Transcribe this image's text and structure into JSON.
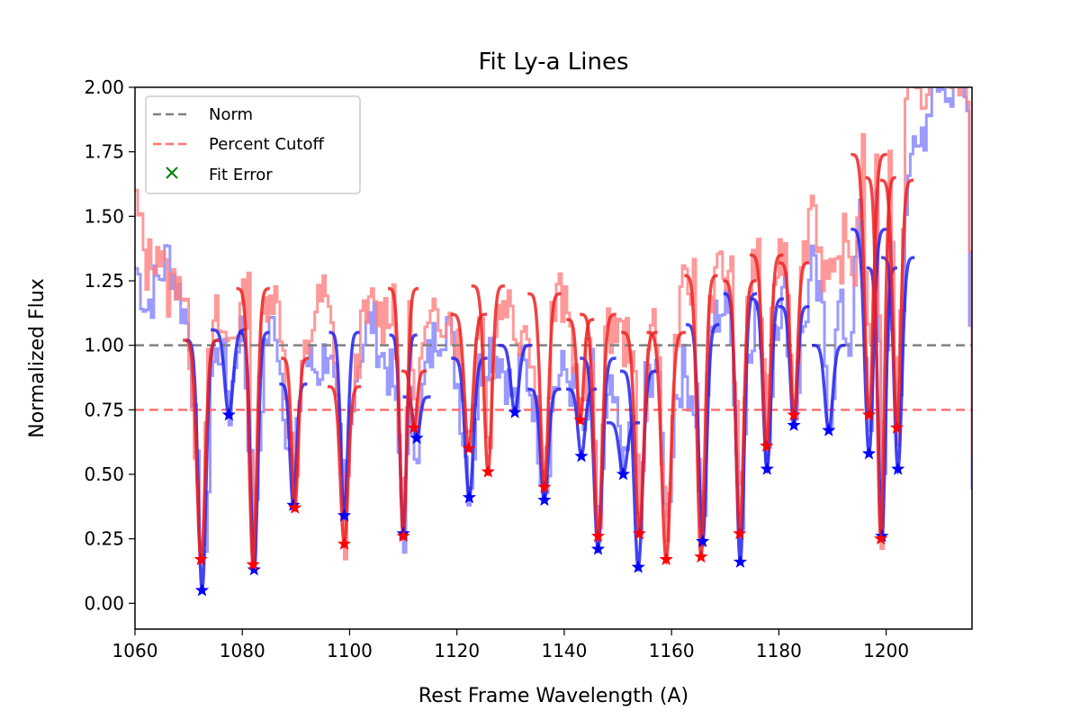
{
  "chart_data": {
    "type": "line",
    "title": "Fit Ly-a Lines",
    "xlabel": "Rest Frame Wavelength (A)",
    "ylabel": "Normalized Flux",
    "xlim": [
      1060,
      1216
    ],
    "ylim": [
      -0.1,
      2.0
    ],
    "x_ticks": [
      1060,
      1080,
      1100,
      1120,
      1140,
      1160,
      1180,
      1200
    ],
    "x_tick_labels": [
      "1060",
      "1080",
      "1100",
      "1120",
      "1140",
      "1160",
      "1180",
      "1200"
    ],
    "y_ticks": [
      0.0,
      0.25,
      0.5,
      0.75,
      1.0,
      1.25,
      1.5,
      1.75,
      2.0
    ],
    "y_tick_labels": [
      "0.00",
      "0.25",
      "0.50",
      "0.75",
      "1.00",
      "1.25",
      "1.50",
      "1.75",
      "2.00"
    ],
    "grid": false,
    "legend_position": "top-left",
    "legend": [
      {
        "label": "Norm",
        "style": "dashed",
        "color": "#808080"
      },
      {
        "label": "Percent Cutoff",
        "style": "dashed",
        "color": "#ff7070"
      },
      {
        "label": "Fit Error",
        "style": "x-marker",
        "color": "#008000"
      }
    ],
    "reference_lines": [
      {
        "name": "Norm",
        "y": 1.0,
        "color": "#808080"
      },
      {
        "name": "Percent Cutoff",
        "y": 0.75,
        "color": "#ff7070"
      }
    ],
    "series_colors": {
      "blue_spectrum": "#8888ff",
      "red_spectrum": "#ff8080",
      "blue_fit": "#2222ee",
      "red_fit": "#ee2222",
      "overlap": "#aa4488"
    },
    "blue_fits": [
      {
        "center": 1072.5,
        "depth": 0.05,
        "width": 1.2,
        "base": 1.02
      },
      {
        "center": 1077.5,
        "depth": 0.73,
        "width": 1.3,
        "base": 1.06
      },
      {
        "center": 1082.2,
        "depth": 0.13,
        "width": 1.1,
        "base": 1.05
      },
      {
        "center": 1089.5,
        "depth": 0.38,
        "width": 1.0,
        "base": 0.85
      },
      {
        "center": 1099.0,
        "depth": 0.34,
        "width": 1.1,
        "base": 1.05
      },
      {
        "center": 1110.0,
        "depth": 0.27,
        "width": 1.0,
        "base": 1.04
      },
      {
        "center": 1112.5,
        "depth": 0.64,
        "width": 1.0,
        "base": 0.8
      },
      {
        "center": 1122.3,
        "depth": 0.41,
        "width": 1.3,
        "base": 0.95
      },
      {
        "center": 1130.8,
        "depth": 0.74,
        "width": 1.2,
        "base": 1.0
      },
      {
        "center": 1136.3,
        "depth": 0.4,
        "width": 1.2,
        "base": 0.83
      },
      {
        "center": 1143.2,
        "depth": 0.57,
        "width": 1.1,
        "base": 0.83
      },
      {
        "center": 1146.3,
        "depth": 0.21,
        "width": 1.3,
        "base": 0.95
      },
      {
        "center": 1151.0,
        "depth": 0.5,
        "width": 1.2,
        "base": 0.7
      },
      {
        "center": 1153.8,
        "depth": 0.14,
        "width": 1.3,
        "base": 0.9
      },
      {
        "center": 1165.8,
        "depth": 0.24,
        "width": 1.2,
        "base": 1.08
      },
      {
        "center": 1172.8,
        "depth": 0.16,
        "width": 1.2,
        "base": 1.2
      },
      {
        "center": 1177.8,
        "depth": 0.52,
        "width": 1.2,
        "base": 1.18
      },
      {
        "center": 1182.8,
        "depth": 0.69,
        "width": 1.1,
        "base": 1.15
      },
      {
        "center": 1189.3,
        "depth": 0.67,
        "width": 1.2,
        "base": 1.0
      },
      {
        "center": 1196.8,
        "depth": 0.58,
        "width": 1.3,
        "base": 1.45
      },
      {
        "center": 1199.2,
        "depth": 0.26,
        "width": 1.1,
        "base": 1.3
      },
      {
        "center": 1202.2,
        "depth": 0.52,
        "width": 1.2,
        "base": 1.34
      }
    ],
    "red_fits": [
      {
        "center": 1072.3,
        "depth": 0.17,
        "width": 1.3,
        "base": 1.02
      },
      {
        "center": 1082.0,
        "depth": 0.15,
        "width": 1.2,
        "base": 1.22
      },
      {
        "center": 1089.8,
        "depth": 0.37,
        "width": 1.0,
        "base": 0.95
      },
      {
        "center": 1099.0,
        "depth": 0.23,
        "width": 1.2,
        "base": 0.84
      },
      {
        "center": 1110.0,
        "depth": 0.26,
        "width": 1.1,
        "base": 1.22
      },
      {
        "center": 1112.0,
        "depth": 0.68,
        "width": 0.9,
        "base": 0.9
      },
      {
        "center": 1122.2,
        "depth": 0.6,
        "width": 1.3,
        "base": 1.12
      },
      {
        "center": 1125.8,
        "depth": 0.51,
        "width": 1.2,
        "base": 1.23
      },
      {
        "center": 1136.3,
        "depth": 0.45,
        "width": 1.2,
        "base": 1.2
      },
      {
        "center": 1143.0,
        "depth": 0.71,
        "width": 1.0,
        "base": 1.1
      },
      {
        "center": 1146.3,
        "depth": 0.26,
        "width": 1.3,
        "base": 1.12
      },
      {
        "center": 1154.0,
        "depth": 0.27,
        "width": 1.3,
        "base": 1.05
      },
      {
        "center": 1159.0,
        "depth": 0.17,
        "width": 1.4,
        "base": 1.05
      },
      {
        "center": 1165.5,
        "depth": 0.18,
        "width": 1.2,
        "base": 1.27
      },
      {
        "center": 1172.7,
        "depth": 0.27,
        "width": 1.2,
        "base": 1.25
      },
      {
        "center": 1177.7,
        "depth": 0.61,
        "width": 1.2,
        "base": 1.35
      },
      {
        "center": 1182.8,
        "depth": 0.73,
        "width": 1.1,
        "base": 1.32
      },
      {
        "center": 1196.8,
        "depth": 0.73,
        "width": 1.3,
        "base": 1.74
      },
      {
        "center": 1199.0,
        "depth": 0.25,
        "width": 1.1,
        "base": 1.65
      },
      {
        "center": 1202.0,
        "depth": 0.68,
        "width": 1.2,
        "base": 1.64
      }
    ],
    "blue_markers": [
      {
        "x": 1072.5,
        "y": 0.05
      },
      {
        "x": 1077.5,
        "y": 0.73
      },
      {
        "x": 1082.2,
        "y": 0.13
      },
      {
        "x": 1089.5,
        "y": 0.38
      },
      {
        "x": 1099.0,
        "y": 0.34
      },
      {
        "x": 1110.0,
        "y": 0.27
      },
      {
        "x": 1112.5,
        "y": 0.64
      },
      {
        "x": 1122.3,
        "y": 0.41
      },
      {
        "x": 1130.8,
        "y": 0.74
      },
      {
        "x": 1136.3,
        "y": 0.4
      },
      {
        "x": 1143.2,
        "y": 0.57
      },
      {
        "x": 1146.3,
        "y": 0.21
      },
      {
        "x": 1151.0,
        "y": 0.5
      },
      {
        "x": 1153.8,
        "y": 0.14
      },
      {
        "x": 1165.8,
        "y": 0.24
      },
      {
        "x": 1172.8,
        "y": 0.16
      },
      {
        "x": 1177.8,
        "y": 0.52
      },
      {
        "x": 1182.8,
        "y": 0.69
      },
      {
        "x": 1189.3,
        "y": 0.67
      },
      {
        "x": 1196.8,
        "y": 0.58
      },
      {
        "x": 1199.2,
        "y": 0.26
      },
      {
        "x": 1202.2,
        "y": 0.52
      }
    ],
    "red_markers": [
      {
        "x": 1072.3,
        "y": 0.17
      },
      {
        "x": 1082.0,
        "y": 0.15
      },
      {
        "x": 1089.8,
        "y": 0.37
      },
      {
        "x": 1099.0,
        "y": 0.23
      },
      {
        "x": 1110.0,
        "y": 0.26
      },
      {
        "x": 1112.0,
        "y": 0.68
      },
      {
        "x": 1122.2,
        "y": 0.6
      },
      {
        "x": 1125.8,
        "y": 0.51
      },
      {
        "x": 1136.3,
        "y": 0.45
      },
      {
        "x": 1143.0,
        "y": 0.71
      },
      {
        "x": 1146.3,
        "y": 0.26
      },
      {
        "x": 1154.0,
        "y": 0.27
      },
      {
        "x": 1159.0,
        "y": 0.17
      },
      {
        "x": 1165.5,
        "y": 0.18
      },
      {
        "x": 1172.7,
        "y": 0.27
      },
      {
        "x": 1177.7,
        "y": 0.61
      },
      {
        "x": 1182.8,
        "y": 0.73
      },
      {
        "x": 1196.8,
        "y": 0.73
      },
      {
        "x": 1199.0,
        "y": 0.25
      },
      {
        "x": 1202.0,
        "y": 0.68
      }
    ],
    "blue_spectrum_anchors": [
      [
        1060,
        1.3
      ],
      [
        1062,
        1.15
      ],
      [
        1064,
        1.25
      ],
      [
        1066,
        1.35
      ],
      [
        1068,
        1.2
      ],
      [
        1070,
        1.05
      ],
      [
        1072,
        0.3
      ],
      [
        1073,
        0.1
      ],
      [
        1074,
        0.9
      ],
      [
        1076,
        1.0
      ],
      [
        1077.5,
        0.75
      ],
      [
        1079,
        1.05
      ],
      [
        1080,
        1.05
      ],
      [
        1081.5,
        0.5
      ],
      [
        1082.2,
        0.15
      ],
      [
        1083,
        0.6
      ],
      [
        1084,
        1.0
      ],
      [
        1086,
        1.1
      ],
      [
        1088,
        0.7
      ],
      [
        1089.5,
        0.45
      ],
      [
        1091,
        0.95
      ],
      [
        1094,
        0.9
      ],
      [
        1096,
        1.0
      ],
      [
        1098,
        0.6
      ],
      [
        1099,
        0.35
      ],
      [
        1100.5,
        0.85
      ],
      [
        1102,
        1.0
      ],
      [
        1104,
        1.1
      ],
      [
        1106,
        0.95
      ],
      [
        1108,
        0.85
      ],
      [
        1110,
        0.28
      ],
      [
        1111,
        0.75
      ],
      [
        1112.5,
        0.62
      ],
      [
        1114,
        0.9
      ],
      [
        1116,
        1.05
      ],
      [
        1118,
        1.1
      ],
      [
        1120,
        0.85
      ],
      [
        1122.3,
        0.42
      ],
      [
        1124,
        0.9
      ],
      [
        1126,
        1.0
      ],
      [
        1128,
        0.95
      ],
      [
        1130.8,
        0.76
      ],
      [
        1132,
        0.95
      ],
      [
        1134,
        0.8
      ],
      [
        1136.3,
        0.42
      ],
      [
        1138,
        0.85
      ],
      [
        1140,
        0.9
      ],
      [
        1142,
        0.8
      ],
      [
        1143.2,
        0.58
      ],
      [
        1145,
        0.9
      ],
      [
        1146.3,
        0.22
      ],
      [
        1148,
        0.8
      ],
      [
        1150,
        0.7
      ],
      [
        1151,
        0.5
      ],
      [
        1152.5,
        0.75
      ],
      [
        1153.8,
        0.15
      ],
      [
        1155,
        0.85
      ],
      [
        1157,
        0.95
      ],
      [
        1159,
        0.3
      ],
      [
        1160.5,
        0.8
      ],
      [
        1162,
        0.9
      ],
      [
        1164,
        0.8
      ],
      [
        1165.8,
        0.25
      ],
      [
        1167,
        1.05
      ],
      [
        1169,
        1.15
      ],
      [
        1171,
        1.1
      ],
      [
        1172.8,
        0.17
      ],
      [
        1174,
        1.0
      ],
      [
        1176,
        1.15
      ],
      [
        1177.8,
        0.53
      ],
      [
        1179,
        1.1
      ],
      [
        1181,
        1.2
      ],
      [
        1182.8,
        0.7
      ],
      [
        1184,
        1.0
      ],
      [
        1186,
        1.3
      ],
      [
        1188,
        1.1
      ],
      [
        1189.3,
        0.68
      ],
      [
        1191,
        1.15
      ],
      [
        1193,
        1.0
      ],
      [
        1195,
        1.5
      ],
      [
        1196.8,
        0.6
      ],
      [
        1198,
        1.5
      ],
      [
        1199.2,
        0.28
      ],
      [
        1200.5,
        1.4
      ],
      [
        1202.2,
        0.53
      ],
      [
        1203.5,
        1.5
      ],
      [
        1205,
        1.9
      ],
      [
        1207,
        1.7
      ],
      [
        1209,
        2.1
      ],
      [
        1211,
        2.0
      ],
      [
        1213,
        2.05
      ],
      [
        1215,
        1.9
      ],
      [
        1216,
        0.45
      ]
    ],
    "red_spectrum_anchors": [
      [
        1060,
        1.55
      ],
      [
        1062,
        1.3
      ],
      [
        1064,
        1.4
      ],
      [
        1066,
        1.2
      ],
      [
        1068,
        1.3
      ],
      [
        1070,
        1.0
      ],
      [
        1072.3,
        0.2
      ],
      [
        1073.5,
        0.9
      ],
      [
        1075,
        1.1
      ],
      [
        1077,
        1.0
      ],
      [
        1079,
        1.1
      ],
      [
        1081,
        1.2
      ],
      [
        1082,
        0.17
      ],
      [
        1083.5,
        1.1
      ],
      [
        1085,
        1.25
      ],
      [
        1087,
        1.1
      ],
      [
        1089.8,
        0.4
      ],
      [
        1091,
        0.9
      ],
      [
        1093,
        1.1
      ],
      [
        1095,
        1.2
      ],
      [
        1097,
        1.0
      ],
      [
        1099,
        0.25
      ],
      [
        1100.5,
        0.85
      ],
      [
        1102,
        1.05
      ],
      [
        1104,
        1.15
      ],
      [
        1106,
        1.1
      ],
      [
        1108,
        1.2
      ],
      [
        1110,
        0.28
      ],
      [
        1111,
        1.2
      ],
      [
        1112,
        0.7
      ],
      [
        1113.5,
        1.0
      ],
      [
        1116,
        1.1
      ],
      [
        1118,
        1.15
      ],
      [
        1120,
        1.0
      ],
      [
        1122.2,
        0.62
      ],
      [
        1123.5,
        1.0
      ],
      [
        1124.5,
        1.2
      ],
      [
        1125.8,
        0.52
      ],
      [
        1127,
        1.1
      ],
      [
        1129,
        1.2
      ],
      [
        1131,
        1.05
      ],
      [
        1133,
        1.1
      ],
      [
        1136.3,
        0.47
      ],
      [
        1137.5,
        1.1
      ],
      [
        1139,
        1.2
      ],
      [
        1141,
        1.05
      ],
      [
        1143,
        0.72
      ],
      [
        1144.5,
        1.05
      ],
      [
        1146.3,
        0.27
      ],
      [
        1147.5,
        1.0
      ],
      [
        1149,
        1.1
      ],
      [
        1151,
        1.0
      ],
      [
        1152.5,
        1.05
      ],
      [
        1154,
        0.28
      ],
      [
        1155.5,
        1.05
      ],
      [
        1157,
        1.1
      ],
      [
        1159,
        0.18
      ],
      [
        1160.5,
        1.0
      ],
      [
        1162,
        1.2
      ],
      [
        1164,
        1.25
      ],
      [
        1165.5,
        0.2
      ],
      [
        1167,
        1.2
      ],
      [
        1169,
        1.3
      ],
      [
        1171,
        1.25
      ],
      [
        1172.7,
        0.28
      ],
      [
        1174,
        1.2
      ],
      [
        1176,
        1.35
      ],
      [
        1177.7,
        0.62
      ],
      [
        1179,
        1.3
      ],
      [
        1181,
        1.4
      ],
      [
        1182.8,
        0.74
      ],
      [
        1184,
        1.25
      ],
      [
        1186,
        1.6
      ],
      [
        1188,
        1.3
      ],
      [
        1190,
        1.2
      ],
      [
        1192,
        1.4
      ],
      [
        1194,
        1.3
      ],
      [
        1195.5,
        1.75
      ],
      [
        1196.8,
        0.75
      ],
      [
        1198,
        1.8
      ],
      [
        1199,
        0.27
      ],
      [
        1200.5,
        1.7
      ],
      [
        1202,
        0.7
      ],
      [
        1203.5,
        1.9
      ],
      [
        1205,
        2.1
      ],
      [
        1207,
        1.85
      ],
      [
        1209,
        2.2
      ],
      [
        1211,
        2.0
      ],
      [
        1213,
        2.1
      ],
      [
        1215,
        2.0
      ],
      [
        1216,
        0.6
      ]
    ]
  }
}
